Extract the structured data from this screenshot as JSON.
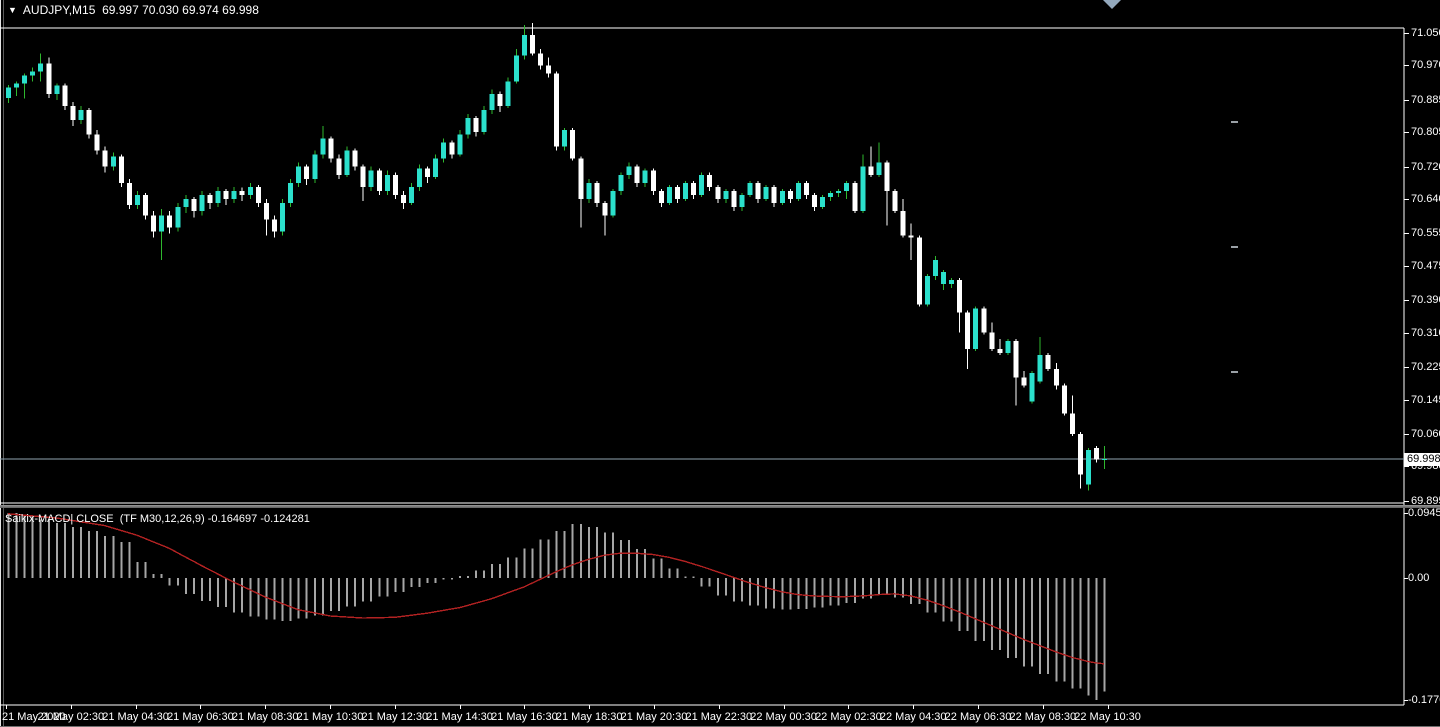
{
  "window": {
    "title_line": "AUDJPY,M15  69.997 70.030 69.974 69.998",
    "dropdown_arrow": "symbol-dropdown"
  },
  "symbol": {
    "name": "AUDJPY",
    "timeframe": "M15",
    "ohlc": {
      "open": "69.997",
      "high": "70.030",
      "low": "69.974",
      "close": "69.998"
    }
  },
  "price_axis": {
    "labels": [
      "71.050",
      "70.970",
      "70.885",
      "70.805",
      "70.720",
      "70.640",
      "70.555",
      "70.475",
      "70.390",
      "70.310",
      "70.225",
      "70.145",
      "70.060",
      "69.980",
      "69.895"
    ],
    "values": [
      71.05,
      70.97,
      70.885,
      70.805,
      70.72,
      70.64,
      70.555,
      70.475,
      70.39,
      70.31,
      70.225,
      70.145,
      70.06,
      69.98,
      69.895
    ],
    "current_label": "69.998",
    "current_value": 69.998
  },
  "time_axis": {
    "labels": [
      "21 May 2020",
      "21 May 02:30",
      "21 May 04:30",
      "21 May 06:30",
      "21 May 08:30",
      "21 May 10:30",
      "21 May 12:30",
      "21 May 14:30",
      "21 May 16:30",
      "21 May 18:30",
      "21 May 20:30",
      "21 May 22:30",
      "22 May 00:30",
      "22 May 02:30",
      "22 May 04:30",
      "22 May 06:30",
      "22 May 08:30",
      "22 May 10:30"
    ]
  },
  "indicator": {
    "label": "Saikix-MACD| CLOSE  (TF M30,12,26,9) -0.164697 -0.124281",
    "name": "Saikix-MACD",
    "applied_to": "CLOSE",
    "params": "TF M30,12,26,9",
    "value_main": "-0.164697",
    "value_signal": "-0.124281",
    "axis_labels": [
      "0.09452",
      "0.00",
      "-0.17704"
    ],
    "axis_values": [
      0.09452,
      0,
      -0.17704
    ]
  },
  "colors": {
    "background": "#000000",
    "frame": "#ffffff",
    "bull_body": "#2be0cc",
    "bull_wick": "#2eb82e",
    "bear_body": "#ffffff",
    "bear_wick": "#ffffff",
    "macd_bar": "#a6a6a6",
    "macd_signal": "#b22222",
    "current_price_line": "#8fa3b0",
    "object_dash": "#9aa0a6",
    "axis_text": "#ffffff"
  },
  "chart_data": [
    {
      "type": "candlestick",
      "title": "AUDJPY M15",
      "ylabel": "price",
      "ylim": [
        69.86,
        71.08
      ],
      "grid": false,
      "legend_position": "none",
      "current_price": 69.998,
      "candles_ohlc": [
        [
          70.89,
          70.922,
          70.877,
          70.915
        ],
        [
          70.915,
          70.93,
          70.895,
          70.925
        ],
        [
          70.925,
          70.95,
          70.888,
          70.945
        ],
        [
          70.945,
          70.965,
          70.93,
          70.955
        ],
        [
          70.955,
          71.0,
          70.93,
          70.975
        ],
        [
          70.975,
          70.99,
          70.89,
          70.9
        ],
        [
          70.9,
          70.925,
          70.885,
          70.92
        ],
        [
          70.92,
          70.925,
          70.86,
          70.87
        ],
        [
          70.87,
          70.88,
          70.82,
          70.835
        ],
        [
          70.835,
          70.87,
          70.825,
          70.86
        ],
        [
          70.86,
          70.865,
          70.79,
          70.8
        ],
        [
          70.8,
          70.81,
          70.75,
          70.76
        ],
        [
          70.76,
          70.77,
          70.705,
          70.72
        ],
        [
          70.72,
          70.755,
          70.71,
          70.745
        ],
        [
          70.745,
          70.75,
          70.67,
          70.68
        ],
        [
          70.68,
          70.69,
          70.615,
          70.625
        ],
        [
          70.625,
          70.66,
          70.615,
          70.65
        ],
        [
          70.65,
          70.655,
          70.59,
          70.6
        ],
        [
          70.6,
          70.61,
          70.545,
          70.56
        ],
        [
          70.56,
          70.615,
          70.49,
          70.6
        ],
        [
          70.6,
          70.61,
          70.555,
          70.57
        ],
        [
          70.57,
          70.63,
          70.56,
          70.62
        ],
        [
          70.62,
          70.65,
          70.605,
          70.64
        ],
        [
          70.64,
          70.645,
          70.595,
          70.61
        ],
        [
          70.61,
          70.66,
          70.6,
          70.65
        ],
        [
          70.65,
          70.655,
          70.615,
          70.63
        ],
        [
          70.63,
          70.67,
          70.62,
          70.66
        ],
        [
          70.66,
          70.665,
          70.625,
          70.64
        ],
        [
          70.64,
          70.67,
          70.63,
          70.66
        ],
        [
          70.66,
          70.668,
          70.635,
          70.65
        ],
        [
          70.65,
          70.68,
          70.64,
          70.67
        ],
        [
          70.67,
          70.675,
          70.62,
          70.63
        ],
        [
          70.63,
          70.64,
          70.55,
          70.59
        ],
        [
          70.59,
          70.6,
          70.545,
          70.56
        ],
        [
          70.56,
          70.64,
          70.55,
          70.63
        ],
        [
          70.63,
          70.69,
          70.62,
          70.68
        ],
        [
          70.68,
          70.73,
          70.67,
          70.72
        ],
        [
          70.72,
          70.725,
          70.675,
          70.69
        ],
        [
          70.69,
          70.76,
          70.68,
          70.75
        ],
        [
          70.75,
          70.82,
          70.74,
          70.79
        ],
        [
          70.79,
          70.795,
          70.73,
          70.74
        ],
        [
          70.74,
          70.75,
          70.69,
          70.7
        ],
        [
          70.7,
          70.77,
          70.695,
          70.76
        ],
        [
          70.76,
          70.765,
          70.71,
          70.72
        ],
        [
          70.72,
          70.725,
          70.635,
          70.67
        ],
        [
          70.67,
          70.72,
          70.66,
          70.71
        ],
        [
          70.71,
          70.715,
          70.65,
          70.66
        ],
        [
          70.66,
          70.71,
          70.65,
          70.7
        ],
        [
          70.7,
          70.705,
          70.64,
          70.65
        ],
        [
          70.65,
          70.66,
          70.615,
          70.63
        ],
        [
          70.63,
          70.68,
          70.625,
          70.67
        ],
        [
          70.67,
          70.725,
          70.66,
          70.715
        ],
        [
          70.715,
          70.72,
          70.68,
          70.695
        ],
        [
          70.695,
          70.75,
          70.69,
          70.74
        ],
        [
          70.74,
          70.79,
          70.73,
          70.78
        ],
        [
          70.78,
          70.785,
          70.74,
          70.75
        ],
        [
          70.75,
          70.81,
          70.745,
          70.8
        ],
        [
          70.8,
          70.85,
          70.79,
          70.84
        ],
        [
          70.84,
          70.845,
          70.795,
          70.805
        ],
        [
          70.805,
          70.87,
          70.8,
          70.86
        ],
        [
          70.86,
          70.91,
          70.85,
          70.9
        ],
        [
          70.9,
          70.905,
          70.855,
          70.87
        ],
        [
          70.87,
          70.94,
          70.865,
          70.93
        ],
        [
          70.93,
          71.01,
          70.925,
          70.995
        ],
        [
          70.995,
          71.07,
          70.985,
          71.045
        ],
        [
          71.045,
          71.075,
          70.995,
          71.0
        ],
        [
          71.0,
          71.01,
          70.96,
          70.97
        ],
        [
          70.97,
          70.99,
          70.94,
          70.95
        ],
        [
          70.95,
          70.955,
          70.76,
          70.77
        ],
        [
          70.77,
          70.815,
          70.76,
          70.81
        ],
        [
          70.81,
          70.815,
          70.735,
          70.74
        ],
        [
          70.74,
          70.745,
          70.57,
          70.64
        ],
        [
          70.64,
          70.69,
          70.63,
          70.68
        ],
        [
          70.68,
          70.685,
          70.62,
          70.63
        ],
        [
          70.63,
          70.635,
          70.55,
          70.6
        ],
        [
          70.6,
          70.665,
          70.595,
          70.66
        ],
        [
          70.66,
          70.705,
          70.65,
          70.7
        ],
        [
          70.7,
          70.73,
          70.69,
          70.72
        ],
        [
          70.72,
          70.725,
          70.67,
          70.68
        ],
        [
          70.68,
          70.715,
          70.67,
          70.71
        ],
        [
          70.71,
          70.715,
          70.65,
          70.66
        ],
        [
          70.66,
          70.665,
          70.62,
          70.63
        ],
        [
          70.63,
          70.675,
          70.625,
          70.67
        ],
        [
          70.67,
          70.675,
          70.63,
          70.64
        ],
        [
          70.64,
          70.685,
          70.635,
          70.68
        ],
        [
          70.68,
          70.685,
          70.64,
          70.65
        ],
        [
          70.65,
          70.705,
          70.645,
          70.7
        ],
        [
          70.7,
          70.705,
          70.66,
          70.67
        ],
        [
          70.67,
          70.675,
          70.63,
          70.64
        ],
        [
          70.64,
          70.665,
          70.63,
          70.66
        ],
        [
          70.66,
          70.665,
          70.61,
          70.62
        ],
        [
          70.62,
          70.655,
          70.61,
          70.65
        ],
        [
          70.65,
          70.685,
          70.645,
          70.68
        ],
        [
          70.68,
          70.685,
          70.63,
          70.64
        ],
        [
          70.64,
          70.675,
          70.635,
          70.67
        ],
        [
          70.67,
          70.675,
          70.62,
          70.63
        ],
        [
          70.63,
          70.665,
          70.625,
          70.66
        ],
        [
          70.66,
          70.665,
          70.63,
          70.64
        ],
        [
          70.64,
          70.685,
          70.635,
          70.68
        ],
        [
          70.68,
          70.685,
          70.64,
          70.65
        ],
        [
          70.65,
          70.655,
          70.61,
          70.62
        ],
        [
          70.62,
          70.65,
          70.615,
          70.645
        ],
        [
          70.645,
          70.66,
          70.635,
          70.655
        ],
        [
          70.655,
          70.665,
          70.645,
          70.66
        ],
        [
          70.66,
          70.685,
          70.64,
          70.68
        ],
        [
          70.68,
          70.685,
          70.605,
          70.61
        ],
        [
          70.61,
          70.75,
          70.605,
          70.72
        ],
        [
          70.72,
          70.77,
          70.695,
          70.7
        ],
        [
          70.7,
          70.78,
          70.695,
          70.73
        ],
        [
          70.73,
          70.735,
          70.575,
          70.66
        ],
        [
          70.66,
          70.665,
          70.605,
          70.61
        ],
        [
          70.61,
          70.64,
          70.545,
          70.55
        ],
        [
          70.55,
          70.58,
          70.49,
          70.545
        ],
        [
          70.545,
          70.55,
          70.375,
          70.38
        ],
        [
          70.38,
          70.455,
          70.375,
          70.45
        ],
        [
          70.45,
          70.5,
          70.44,
          70.49
        ],
        [
          70.43,
          70.465,
          70.415,
          70.46
        ],
        [
          70.43,
          70.445,
          70.42,
          70.44
        ],
        [
          70.44,
          70.445,
          70.31,
          70.36
        ],
        [
          70.36,
          70.365,
          70.22,
          70.27
        ],
        [
          70.27,
          70.375,
          70.265,
          70.37
        ],
        [
          70.37,
          70.375,
          70.305,
          70.31
        ],
        [
          70.31,
          70.335,
          70.265,
          70.27
        ],
        [
          70.27,
          70.295,
          70.255,
          70.26
        ],
        [
          70.26,
          70.295,
          70.255,
          70.29
        ],
        [
          70.29,
          70.295,
          70.13,
          70.2
        ],
        [
          70.2,
          70.215,
          70.175,
          70.18
        ],
        [
          70.14,
          70.215,
          70.135,
          70.21
        ],
        [
          70.19,
          70.3,
          70.185,
          70.255
        ],
        [
          70.255,
          70.26,
          70.215,
          70.22
        ],
        [
          70.22,
          70.235,
          70.17,
          70.18
        ],
        [
          70.18,
          70.185,
          70.105,
          70.11
        ],
        [
          70.11,
          70.155,
          70.055,
          70.06
        ],
        [
          70.06,
          70.065,
          69.925,
          69.96
        ],
        [
          69.935,
          70.025,
          69.92,
          70.02
        ],
        [
          70.025,
          70.03,
          69.99,
          69.997
        ],
        [
          69.997,
          70.03,
          69.974,
          69.998
        ]
      ]
    },
    {
      "type": "bar",
      "title": "Saikix-MACD histogram with signal line",
      "ylim": [
        -0.17704,
        0.09452
      ],
      "histogram": [
        0.0945,
        0.0945,
        0.09,
        0.09,
        0.085,
        0.085,
        0.08,
        0.08,
        0.074,
        0.074,
        0.068,
        0.068,
        0.061,
        0.061,
        0.052,
        0.052,
        0.023,
        0.023,
        0.006,
        0.006,
        -0.011,
        -0.011,
        -0.023,
        -0.023,
        -0.033,
        -0.033,
        -0.042,
        -0.042,
        -0.05,
        -0.05,
        -0.056,
        -0.056,
        -0.06,
        -0.06,
        -0.062,
        -0.062,
        -0.059,
        -0.059,
        -0.054,
        -0.054,
        -0.048,
        -0.048,
        -0.041,
        -0.041,
        -0.034,
        -0.034,
        -0.027,
        -0.027,
        -0.02,
        -0.02,
        -0.013,
        -0.013,
        -0.007,
        -0.007,
        -0.002,
        -0.002,
        0.003,
        0.003,
        0.011,
        0.011,
        0.02,
        0.02,
        0.03,
        0.03,
        0.043,
        0.043,
        0.056,
        0.056,
        0.068,
        0.068,
        0.078,
        0.078,
        0.074,
        0.074,
        0.066,
        0.066,
        0.055,
        0.055,
        0.042,
        0.042,
        0.028,
        0.028,
        0.014,
        0.014,
        0.002,
        0.002,
        -0.012,
        -0.012,
        -0.025,
        -0.025,
        -0.034,
        -0.034,
        -0.04,
        -0.04,
        -0.044,
        -0.044,
        -0.046,
        -0.046,
        -0.045,
        -0.045,
        -0.043,
        -0.043,
        -0.04,
        -0.04,
        -0.036,
        -0.036,
        -0.03,
        -0.03,
        -0.024,
        -0.024,
        -0.028,
        -0.028,
        -0.038,
        -0.038,
        -0.05,
        -0.05,
        -0.063,
        -0.063,
        -0.077,
        -0.077,
        -0.091,
        -0.091,
        -0.104,
        -0.104,
        -0.116,
        -0.116,
        -0.128,
        -0.128,
        -0.139,
        -0.139,
        -0.15,
        -0.15,
        -0.16,
        -0.16,
        -0.17,
        -0.177,
        -0.1647
      ],
      "signal": [
        0.093,
        0.092,
        0.091,
        0.09,
        0.089,
        0.088,
        0.087,
        0.0852,
        0.0833,
        0.0815,
        0.0797,
        0.0778,
        0.076,
        0.0725,
        0.069,
        0.0655,
        0.062,
        0.0573,
        0.0525,
        0.0478,
        0.043,
        0.0368,
        0.0305,
        0.0243,
        0.018,
        0.012,
        0.006,
        0.0,
        -0.006,
        -0.0115,
        -0.017,
        -0.0225,
        -0.028,
        -0.0325,
        -0.037,
        -0.0415,
        -0.046,
        -0.0483,
        -0.0505,
        -0.0528,
        -0.055,
        -0.0558,
        -0.0565,
        -0.0573,
        -0.058,
        -0.0578,
        -0.0575,
        -0.0573,
        -0.057,
        -0.0555,
        -0.054,
        -0.0525,
        -0.051,
        -0.049,
        -0.047,
        -0.045,
        -0.043,
        -0.0398,
        -0.0365,
        -0.0333,
        -0.03,
        -0.0258,
        -0.0215,
        -0.0173,
        -0.013,
        -0.0075,
        -0.002,
        0.0035,
        0.009,
        0.014,
        0.019,
        0.023,
        0.027,
        0.03,
        0.033,
        0.0345,
        0.036,
        0.036,
        0.036,
        0.035,
        0.034,
        0.032,
        0.03,
        0.027,
        0.024,
        0.0205,
        0.017,
        0.013,
        0.009,
        0.005,
        0.001,
        -0.003,
        -0.007,
        -0.0105,
        -0.014,
        -0.017,
        -0.02,
        -0.022,
        -0.024,
        -0.025,
        -0.026,
        -0.0265,
        -0.0268,
        -0.027,
        -0.027,
        -0.0265,
        -0.026,
        -0.025,
        -0.024,
        -0.0235,
        -0.023,
        -0.0245,
        -0.026,
        -0.029,
        -0.032,
        -0.036,
        -0.04,
        -0.0445,
        -0.049,
        -0.054,
        -0.059,
        -0.064,
        -0.069,
        -0.074,
        -0.079,
        -0.084,
        -0.089,
        -0.0935,
        -0.098,
        -0.1025,
        -0.107,
        -0.111,
        -0.115,
        -0.118,
        -0.121,
        -0.123,
        -0.1243
      ]
    }
  ],
  "objects": {
    "dash_marks_count": 3
  }
}
